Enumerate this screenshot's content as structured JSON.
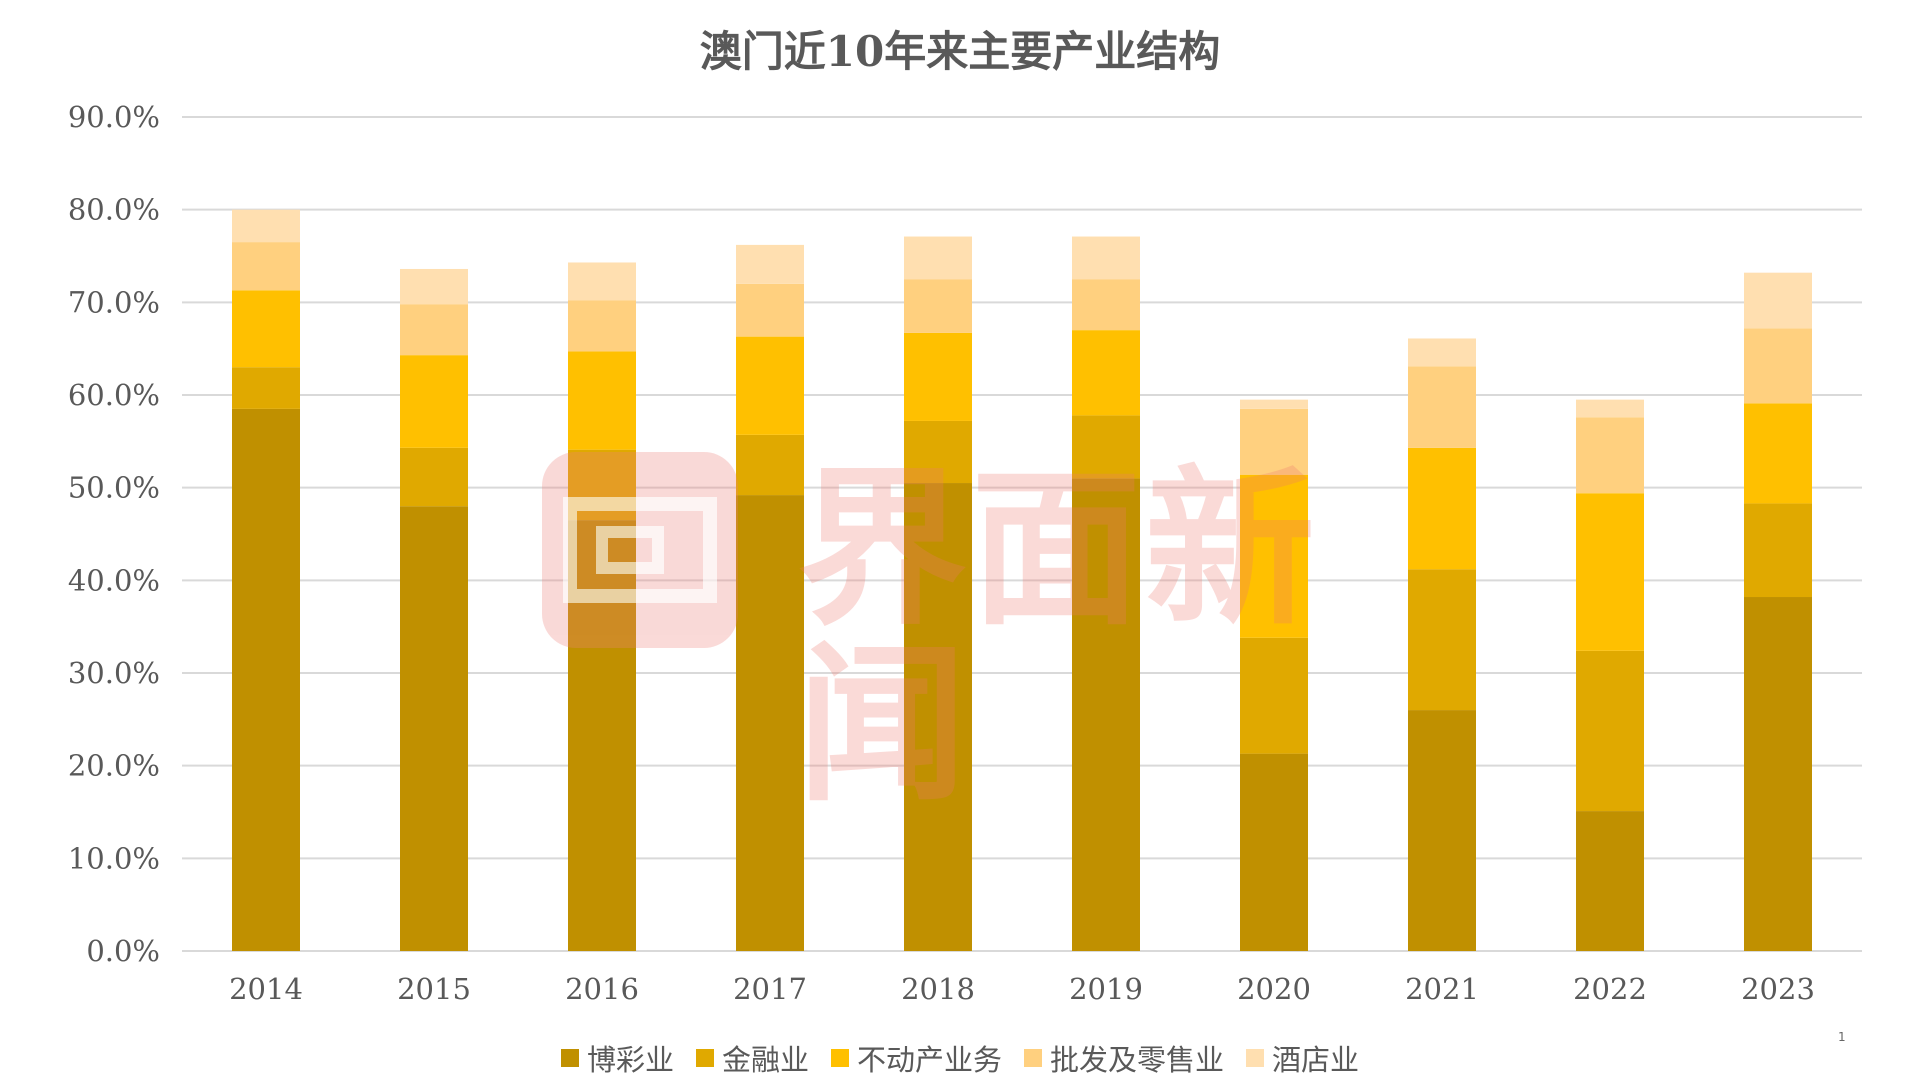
{
  "chart_data": {
    "type": "bar",
    "stacked": true,
    "title": "澳门近10年来主要产业结构",
    "xlabel": "",
    "ylabel": "",
    "ylim": [
      0,
      90
    ],
    "ytick_values": [
      0,
      10,
      20,
      30,
      40,
      50,
      60,
      70,
      80,
      90
    ],
    "ytick_labels": [
      "0.0%",
      "10.0%",
      "20.0%",
      "30.0%",
      "40.0%",
      "50.0%",
      "60.0%",
      "70.0%",
      "80.0%",
      "90.0%"
    ],
    "grid": true,
    "legend_position": "bottom",
    "categories": [
      "2014",
      "2015",
      "2016",
      "2017",
      "2018",
      "2019",
      "2020",
      "2021",
      "2022",
      "2023"
    ],
    "series": [
      {
        "name": "博彩业",
        "color": "#C09000",
        "values": [
          58.5,
          48.0,
          46.5,
          49.2,
          50.5,
          51.0,
          21.3,
          26.0,
          15.1,
          38.2
        ]
      },
      {
        "name": "金融业",
        "color": "#E0A900",
        "values": [
          4.5,
          6.3,
          7.6,
          6.5,
          6.7,
          6.8,
          12.5,
          15.2,
          17.3,
          10.1
        ]
      },
      {
        "name": "不动产业务",
        "color": "#FFC000",
        "values": [
          8.3,
          10.0,
          10.6,
          10.6,
          9.5,
          9.2,
          17.6,
          13.1,
          17.0,
          10.8
        ]
      },
      {
        "name": "批发及零售业",
        "color": "#FFD07F",
        "values": [
          5.2,
          5.5,
          5.5,
          5.7,
          5.8,
          5.5,
          7.1,
          8.8,
          8.2,
          8.1
        ]
      },
      {
        "name": "酒店业",
        "color": "#FFDFB0",
        "values": [
          3.5,
          3.8,
          4.1,
          4.2,
          4.6,
          4.6,
          1.0,
          3.0,
          1.9,
          6.0
        ]
      }
    ]
  },
  "watermark": {
    "text": "界面新闻",
    "color": "#EE827C"
  },
  "page_number": "1"
}
